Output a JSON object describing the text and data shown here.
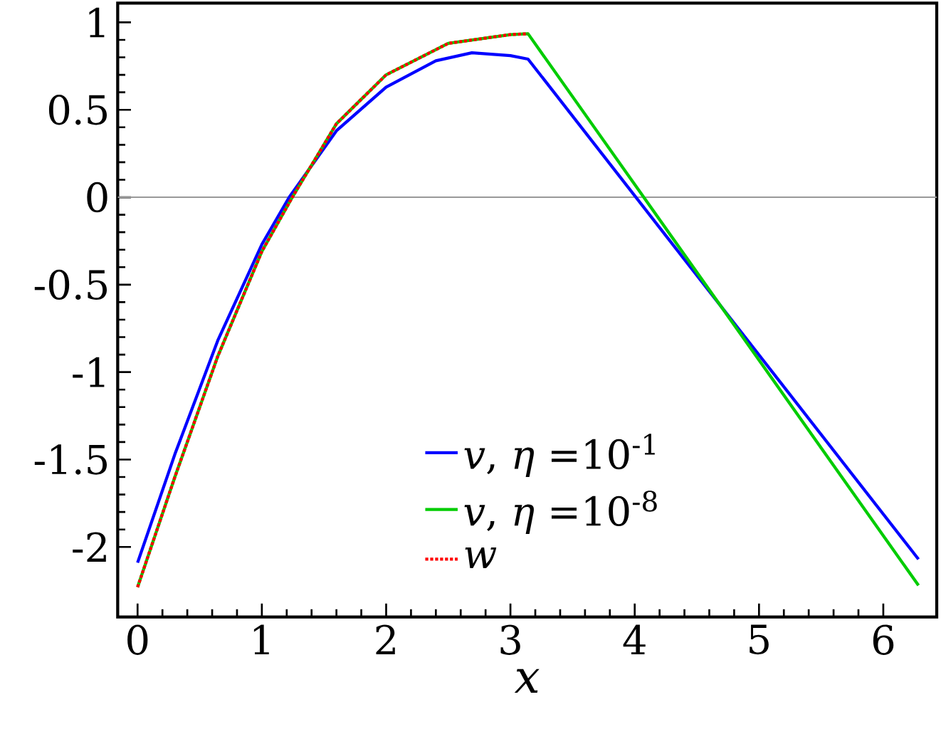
{
  "chart_data": {
    "type": "line",
    "xlabel": "x",
    "xlim": [
      -0.16,
      6.43
    ],
    "ylim": [
      -2.4,
      1.11
    ],
    "xticks": [
      0,
      1,
      2,
      3,
      4,
      5,
      6
    ],
    "yticks": [
      1,
      0.5,
      0,
      -0.5,
      -1,
      -1.5,
      -2
    ],
    "legend": "bottom",
    "grid": false,
    "marker": "none",
    "ref_lines": [
      {
        "axis": "y",
        "value": 0,
        "color": "#999999"
      }
    ],
    "series": [
      {
        "name": "*v*, *η* =10$^{-1}$",
        "color": "#0000ff",
        "line_style": "solid",
        "x": [
          0,
          0.3,
          0.645,
          1.0,
          1.22,
          1.6,
          2.0,
          2.4,
          2.69,
          3.0,
          3.1416,
          6.2832
        ],
        "values": [
          -2.09,
          -1.47,
          -0.82,
          -0.27,
          0,
          0.38,
          0.63,
          0.78,
          0.826,
          0.81,
          0.79,
          -2.07
        ]
      },
      {
        "name": "*v*, *η* =10$^{-8}$",
        "color": "#00cc00",
        "line_style": "solid",
        "x": [
          0,
          0.3,
          0.645,
          1.0,
          1.245,
          1.6,
          2.0,
          2.5,
          3.0,
          3.1416,
          6.2832
        ],
        "values": [
          -2.23,
          -1.6,
          -0.91,
          -0.31,
          0,
          0.42,
          0.7,
          0.88,
          0.93,
          0.935,
          -2.22
        ]
      },
      {
        "name": "*w*",
        "color": "#ff0000",
        "line_style": "dotted",
        "x": [
          0,
          0.3,
          0.645,
          1.0,
          1.245,
          1.6,
          2.0,
          2.5,
          3.0,
          3.1416
        ],
        "values": [
          -2.23,
          -1.6,
          -0.91,
          -0.31,
          0,
          0.42,
          0.7,
          0.88,
          0.93,
          0.935
        ]
      }
    ]
  }
}
